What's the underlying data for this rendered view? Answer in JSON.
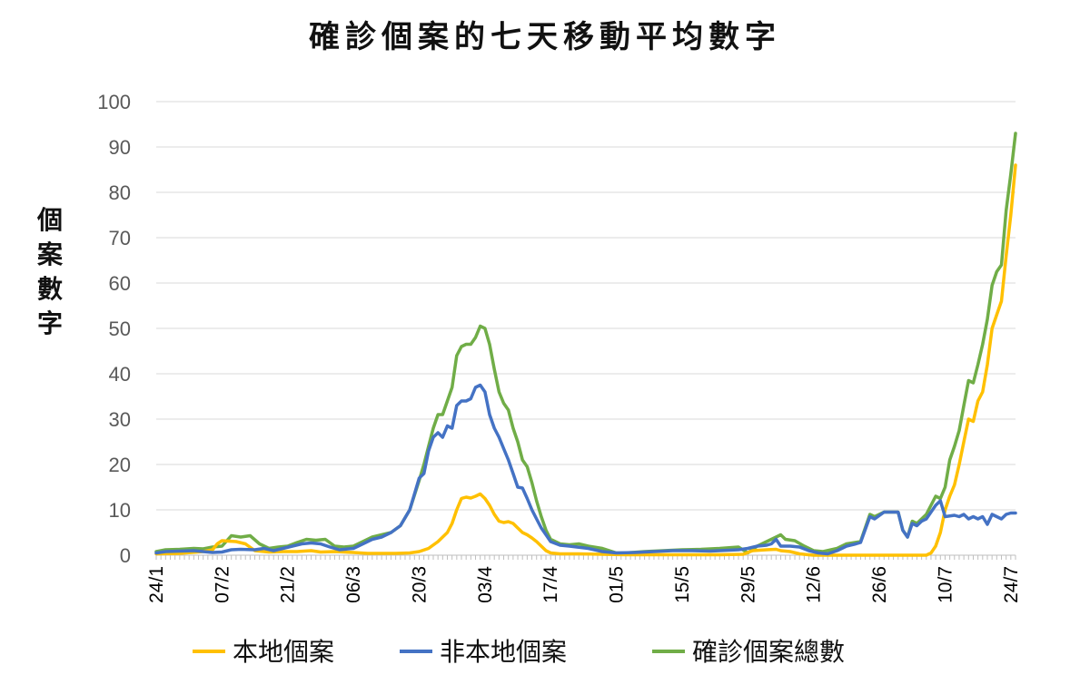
{
  "chart_data": {
    "type": "line",
    "title": "確診個案的七天移動平均數字",
    "ylabel": "個案數字",
    "xlabel": "",
    "ylim": [
      0,
      100
    ],
    "yticks": [
      0,
      10,
      20,
      30,
      40,
      50,
      60,
      70,
      80,
      90,
      100
    ],
    "grid": true,
    "legend_position": "bottom",
    "x_start_label": "24/1",
    "x_tick_labels": [
      "24/1",
      "07/2",
      "21/2",
      "06/3",
      "20/3",
      "03/4",
      "17/4",
      "01/5",
      "15/5",
      "29/5",
      "12/6",
      "26/6",
      "10/7",
      "24/7"
    ],
    "x_tick_days": [
      0,
      14,
      28,
      42,
      56,
      70,
      84,
      98,
      112,
      126,
      140,
      154,
      168,
      182
    ],
    "series": [
      {
        "name": "本地個案",
        "color": "#FFC000",
        "points": [
          [
            0,
            0.3
          ],
          [
            5,
            0.4
          ],
          [
            10,
            0.8
          ],
          [
            12,
            1.2
          ],
          [
            13,
            2.5
          ],
          [
            14,
            3.2
          ],
          [
            17,
            3.0
          ],
          [
            19,
            2.5
          ],
          [
            21,
            1.0
          ],
          [
            24,
            0.7
          ],
          [
            27,
            0.8
          ],
          [
            30,
            0.8
          ],
          [
            33,
            1.0
          ],
          [
            35,
            0.7
          ],
          [
            38,
            0.8
          ],
          [
            42,
            0.6
          ],
          [
            45,
            0.4
          ],
          [
            48,
            0.4
          ],
          [
            51,
            0.4
          ],
          [
            54,
            0.5
          ],
          [
            56,
            0.8
          ],
          [
            58,
            1.5
          ],
          [
            60,
            3.0
          ],
          [
            62,
            5.0
          ],
          [
            63,
            7.0
          ],
          [
            64,
            10.0
          ],
          [
            65,
            12.5
          ],
          [
            66,
            12.8
          ],
          [
            67,
            12.6
          ],
          [
            68,
            13.0
          ],
          [
            69,
            13.5
          ],
          [
            70,
            12.5
          ],
          [
            71,
            11.0
          ],
          [
            72,
            9.0
          ],
          [
            73,
            7.5
          ],
          [
            74,
            7.2
          ],
          [
            75,
            7.4
          ],
          [
            76,
            7.0
          ],
          [
            77,
            6.0
          ],
          [
            78,
            5.0
          ],
          [
            79,
            4.5
          ],
          [
            80,
            3.8
          ],
          [
            81,
            3.0
          ],
          [
            82,
            2.0
          ],
          [
            83,
            1.0
          ],
          [
            84,
            0.5
          ],
          [
            86,
            0.3
          ],
          [
            90,
            0.3
          ],
          [
            95,
            0.2
          ],
          [
            100,
            0.1
          ],
          [
            110,
            0.1
          ],
          [
            115,
            0.1
          ],
          [
            120,
            0.1
          ],
          [
            125,
            0.2
          ],
          [
            126,
            0.6
          ],
          [
            127,
            1.0
          ],
          [
            130,
            1.2
          ],
          [
            132,
            1.3
          ],
          [
            133,
            1.0
          ],
          [
            135,
            0.8
          ],
          [
            137,
            0.3
          ],
          [
            140,
            0.0
          ],
          [
            150,
            0.0
          ],
          [
            160,
            0.0
          ],
          [
            164,
            0.0
          ],
          [
            165,
            0.5
          ],
          [
            166,
            2.0
          ],
          [
            167,
            5.0
          ],
          [
            168,
            10.0
          ],
          [
            169,
            13.0
          ],
          [
            170,
            15.5
          ],
          [
            171,
            20.0
          ],
          [
            172,
            25.0
          ],
          [
            173,
            30.0
          ],
          [
            174,
            29.5
          ],
          [
            175,
            34.0
          ],
          [
            176,
            36.0
          ],
          [
            177,
            42.0
          ],
          [
            178,
            50.0
          ],
          [
            179,
            53.0
          ],
          [
            180,
            56.0
          ],
          [
            181,
            66.0
          ],
          [
            182,
            75.0
          ],
          [
            183,
            86.0
          ]
        ]
      },
      {
        "name": "非本地個案",
        "color": "#4472C4",
        "points": [
          [
            0,
            0.5
          ],
          [
            2,
            0.8
          ],
          [
            5,
            0.9
          ],
          [
            8,
            1.0
          ],
          [
            10,
            0.8
          ],
          [
            12,
            0.6
          ],
          [
            14,
            0.7
          ],
          [
            16,
            1.2
          ],
          [
            18,
            1.3
          ],
          [
            21,
            1.2
          ],
          [
            23,
            1.5
          ],
          [
            25,
            1.0
          ],
          [
            27,
            1.5
          ],
          [
            29,
            2.0
          ],
          [
            31,
            2.5
          ],
          [
            33,
            2.7
          ],
          [
            35,
            2.5
          ],
          [
            37,
            1.8
          ],
          [
            39,
            1.2
          ],
          [
            42,
            1.5
          ],
          [
            44,
            2.5
          ],
          [
            46,
            3.5
          ],
          [
            48,
            4.0
          ],
          [
            50,
            5.0
          ],
          [
            52,
            6.5
          ],
          [
            54,
            10.0
          ],
          [
            56,
            17.0
          ],
          [
            57,
            18.0
          ],
          [
            58,
            23.0
          ],
          [
            59,
            26.0
          ],
          [
            60,
            27.0
          ],
          [
            61,
            26.0
          ],
          [
            62,
            28.5
          ],
          [
            63,
            28.0
          ],
          [
            64,
            33.0
          ],
          [
            65,
            34.0
          ],
          [
            66,
            34.0
          ],
          [
            67,
            34.5
          ],
          [
            68,
            37.0
          ],
          [
            69,
            37.5
          ],
          [
            70,
            36.0
          ],
          [
            71,
            31.0
          ],
          [
            72,
            28.0
          ],
          [
            73,
            26.0
          ],
          [
            74,
            23.5
          ],
          [
            75,
            21.0
          ],
          [
            76,
            18.0
          ],
          [
            77,
            15.0
          ],
          [
            78,
            14.8
          ],
          [
            79,
            12.5
          ],
          [
            80,
            10.0
          ],
          [
            81,
            8.0
          ],
          [
            82,
            6.0
          ],
          [
            83,
            4.5
          ],
          [
            84,
            3.0
          ],
          [
            86,
            2.2
          ],
          [
            88,
            2.0
          ],
          [
            92,
            1.5
          ],
          [
            95,
            0.8
          ],
          [
            98,
            0.5
          ],
          [
            102,
            0.6
          ],
          [
            106,
            0.8
          ],
          [
            110,
            1.0
          ],
          [
            114,
            1.0
          ],
          [
            118,
            0.9
          ],
          [
            120,
            1.0
          ],
          [
            122,
            1.1
          ],
          [
            124,
            1.2
          ],
          [
            126,
            1.5
          ],
          [
            128,
            2.0
          ],
          [
            130,
            2.2
          ],
          [
            131,
            2.5
          ],
          [
            132,
            3.5
          ],
          [
            133,
            2.0
          ],
          [
            135,
            2.0
          ],
          [
            137,
            1.8
          ],
          [
            139,
            1.0
          ],
          [
            141,
            0.5
          ],
          [
            143,
            0.3
          ],
          [
            145,
            1.0
          ],
          [
            147,
            2.0
          ],
          [
            149,
            2.5
          ],
          [
            150,
            2.8
          ],
          [
            152,
            8.5
          ],
          [
            153,
            8.0
          ],
          [
            155,
            9.5
          ],
          [
            158,
            9.5
          ],
          [
            159,
            5.5
          ],
          [
            160,
            4.0
          ],
          [
            161,
            7.0
          ],
          [
            162,
            6.5
          ],
          [
            163,
            7.5
          ],
          [
            164,
            8.0
          ],
          [
            166,
            11.0
          ],
          [
            167,
            12.0
          ],
          [
            168,
            8.5
          ],
          [
            170,
            8.8
          ],
          [
            171,
            8.5
          ],
          [
            172,
            9.0
          ],
          [
            173,
            8.0
          ],
          [
            174,
            8.5
          ],
          [
            175,
            8.0
          ],
          [
            176,
            8.5
          ],
          [
            177,
            6.8
          ],
          [
            178,
            9.0
          ],
          [
            179,
            8.5
          ],
          [
            180,
            8.0
          ],
          [
            181,
            9.0
          ],
          [
            182,
            9.3
          ],
          [
            183,
            9.3
          ]
        ]
      },
      {
        "name": "確診個案總數",
        "color": "#70AD47",
        "points": [
          [
            0,
            0.8
          ],
          [
            2,
            1.2
          ],
          [
            5,
            1.3
          ],
          [
            8,
            1.5
          ],
          [
            10,
            1.4
          ],
          [
            12,
            1.8
          ],
          [
            14,
            2.0
          ],
          [
            16,
            4.3
          ],
          [
            18,
            4.0
          ],
          [
            20,
            4.3
          ],
          [
            22,
            2.5
          ],
          [
            24,
            1.5
          ],
          [
            26,
            1.8
          ],
          [
            28,
            2.0
          ],
          [
            30,
            2.8
          ],
          [
            32,
            3.5
          ],
          [
            34,
            3.3
          ],
          [
            36,
            3.5
          ],
          [
            38,
            2.0
          ],
          [
            40,
            1.8
          ],
          [
            42,
            2.0
          ],
          [
            44,
            3.0
          ],
          [
            46,
            4.0
          ],
          [
            48,
            4.5
          ],
          [
            50,
            5.0
          ],
          [
            52,
            6.5
          ],
          [
            54,
            10.0
          ],
          [
            56,
            16.5
          ],
          [
            57,
            20.0
          ],
          [
            58,
            24.0
          ],
          [
            59,
            28.0
          ],
          [
            60,
            31.0
          ],
          [
            61,
            31.0
          ],
          [
            62,
            34.0
          ],
          [
            63,
            37.0
          ],
          [
            64,
            44.0
          ],
          [
            65,
            46.0
          ],
          [
            66,
            46.5
          ],
          [
            67,
            46.5
          ],
          [
            68,
            48.0
          ],
          [
            69,
            50.5
          ],
          [
            70,
            50.0
          ],
          [
            71,
            46.5
          ],
          [
            72,
            41.0
          ],
          [
            73,
            36.0
          ],
          [
            74,
            33.5
          ],
          [
            75,
            32.0
          ],
          [
            76,
            28.0
          ],
          [
            77,
            25.0
          ],
          [
            78,
            21.0
          ],
          [
            79,
            19.5
          ],
          [
            80,
            16.0
          ],
          [
            81,
            12.0
          ],
          [
            82,
            8.5
          ],
          [
            83,
            5.5
          ],
          [
            84,
            3.5
          ],
          [
            86,
            2.5
          ],
          [
            88,
            2.3
          ],
          [
            90,
            2.5
          ],
          [
            92,
            2.0
          ],
          [
            95,
            1.5
          ],
          [
            98,
            0.5
          ],
          [
            100,
            0.5
          ],
          [
            104,
            0.8
          ],
          [
            108,
            1.0
          ],
          [
            112,
            1.2
          ],
          [
            116,
            1.3
          ],
          [
            120,
            1.5
          ],
          [
            124,
            1.8
          ],
          [
            126,
            0.5
          ],
          [
            128,
            2.0
          ],
          [
            130,
            3.0
          ],
          [
            132,
            4.0
          ],
          [
            133,
            4.5
          ],
          [
            134,
            3.5
          ],
          [
            136,
            3.2
          ],
          [
            138,
            2.0
          ],
          [
            140,
            1.0
          ],
          [
            142,
            0.8
          ],
          [
            145,
            1.5
          ],
          [
            147,
            2.5
          ],
          [
            150,
            3.0
          ],
          [
            152,
            9.0
          ],
          [
            153,
            8.5
          ],
          [
            155,
            9.5
          ],
          [
            158,
            9.5
          ],
          [
            159,
            5.5
          ],
          [
            160,
            4.0
          ],
          [
            161,
            7.5
          ],
          [
            162,
            7.0
          ],
          [
            163,
            8.0
          ],
          [
            164,
            9.0
          ],
          [
            166,
            13.0
          ],
          [
            167,
            12.5
          ],
          [
            168,
            15.0
          ],
          [
            169,
            21.0
          ],
          [
            170,
            24.0
          ],
          [
            171,
            27.5
          ],
          [
            172,
            33.0
          ],
          [
            173,
            38.5
          ],
          [
            174,
            38.0
          ],
          [
            175,
            42.0
          ],
          [
            176,
            46.5
          ],
          [
            177,
            52.0
          ],
          [
            178,
            59.5
          ],
          [
            179,
            62.5
          ],
          [
            180,
            64.0
          ],
          [
            181,
            76.0
          ],
          [
            182,
            84.0
          ],
          [
            183,
            93.0
          ]
        ]
      }
    ]
  }
}
